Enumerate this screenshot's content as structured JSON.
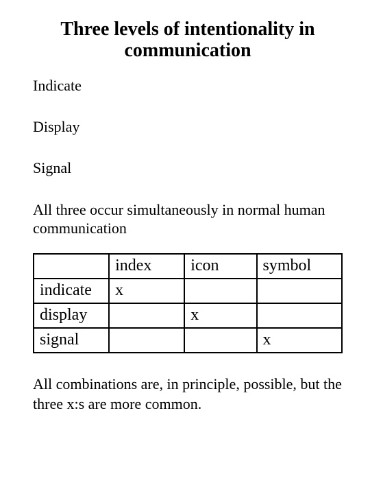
{
  "title": "Three levels of intentionality in communication",
  "list": {
    "item1": "Indicate",
    "item2": "Display",
    "item3": "Signal"
  },
  "paragraph1": "All three occur simultaneously in normal human communication",
  "table": {
    "type": "table",
    "border_color": "#000000",
    "border_width": 2,
    "background_color": "#ffffff",
    "text_color": "#000000",
    "font_size_pt": 18,
    "columns": [
      "",
      "index",
      "icon",
      "symbol"
    ],
    "rows": [
      {
        "label": "indicate",
        "cells": [
          "x",
          "",
          ""
        ]
      },
      {
        "label": "display",
        "cells": [
          "",
          "x",
          ""
        ]
      },
      {
        "label": "signal",
        "cells": [
          "",
          "",
          "x"
        ]
      }
    ],
    "column_widths_pct": [
      23,
      23,
      22,
      26
    ]
  },
  "paragraph2": "All combinations are, in principle, possible, but the three x:s are more common."
}
